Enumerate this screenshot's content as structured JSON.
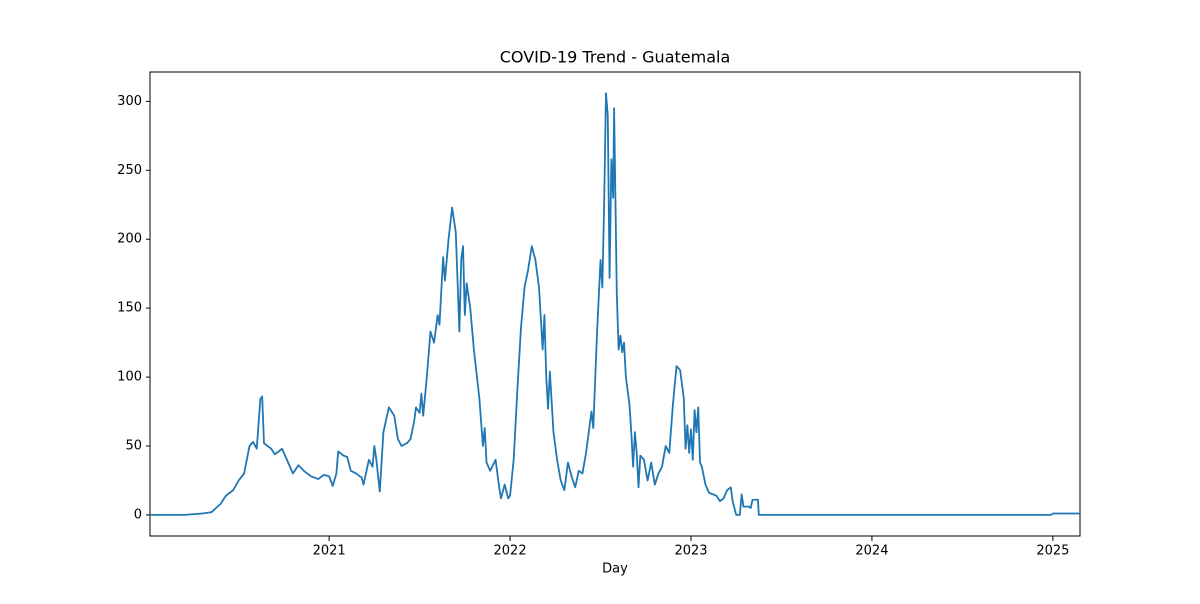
{
  "chart_data": {
    "type": "line",
    "title": "COVID-19 Trend - Guatemala",
    "xlabel": "Day",
    "color": "#1f77b4",
    "x": [
      2020.01,
      2020.2,
      2020.3,
      2020.35,
      2020.4,
      2020.43,
      2020.47,
      2020.5,
      2020.53,
      2020.56,
      2020.58,
      2020.6,
      2020.62,
      2020.63,
      2020.64,
      2020.68,
      2020.7,
      2020.74,
      2020.78,
      2020.8,
      2020.83,
      2020.86,
      2020.9,
      2020.94,
      2020.97,
      2021.0,
      2021.02,
      2021.04,
      2021.05,
      2021.08,
      2021.1,
      2021.12,
      2021.15,
      2021.18,
      2021.19,
      2021.22,
      2021.24,
      2021.25,
      2021.26,
      2021.28,
      2021.3,
      2021.33,
      2021.36,
      2021.38,
      2021.4,
      2021.43,
      2021.45,
      2021.47,
      2021.48,
      2021.5,
      2021.51,
      2021.52,
      2021.54,
      2021.56,
      2021.58,
      2021.6,
      2021.61,
      2021.63,
      2021.64,
      2021.66,
      2021.68,
      2021.7,
      2021.72,
      2021.73,
      2021.74,
      2021.75,
      2021.76,
      2021.78,
      2021.8,
      2021.83,
      2021.85,
      2021.86,
      2021.87,
      2021.89,
      2021.92,
      2021.94,
      2021.95,
      2021.97,
      2021.99,
      2022.0,
      2022.02,
      2022.04,
      2022.06,
      2022.08,
      2022.1,
      2022.12,
      2022.14,
      2022.16,
      2022.18,
      2022.19,
      2022.2,
      2022.21,
      2022.22,
      2022.24,
      2022.26,
      2022.28,
      2022.3,
      2022.32,
      2022.34,
      2022.36,
      2022.38,
      2022.4,
      2022.42,
      2022.44,
      2022.45,
      2022.46,
      2022.48,
      2022.5,
      2022.51,
      2022.52,
      2022.53,
      2022.54,
      2022.55,
      2022.56,
      2022.57,
      2022.575,
      2022.59,
      2022.6,
      2022.61,
      2022.62,
      2022.63,
      2022.64,
      2022.66,
      2022.67,
      2022.68,
      2022.69,
      2022.7,
      2022.71,
      2022.72,
      2022.74,
      2022.76,
      2022.78,
      2022.8,
      2022.82,
      2022.84,
      2022.86,
      2022.88,
      2022.9,
      2022.92,
      2022.94,
      2022.96,
      2022.97,
      2022.98,
      2022.99,
      2023.0,
      2023.01,
      2023.02,
      2023.03,
      2023.04,
      2023.05,
      2023.06,
      2023.08,
      2023.1,
      2023.12,
      2023.14,
      2023.16,
      2023.18,
      2023.2,
      2023.22,
      2023.23,
      2023.25,
      2023.27,
      2023.28,
      2023.29,
      2023.32,
      2023.33,
      2023.34,
      2023.37,
      2023.375,
      2024.0,
      2024.99,
      2025.0,
      2025.1,
      2025.15
    ],
    "values": [
      0,
      0,
      1,
      2,
      8,
      14,
      18,
      25,
      30,
      50,
      53,
      48,
      84,
      86,
      52,
      48,
      44,
      48,
      36,
      30,
      36,
      32,
      28,
      26,
      29,
      28,
      21,
      30,
      46,
      43,
      42,
      32,
      30,
      27,
      22,
      40,
      35,
      50,
      41,
      17,
      60,
      78,
      72,
      55,
      50,
      52,
      55,
      68,
      78,
      74,
      88,
      72,
      100,
      133,
      125,
      145,
      138,
      187,
      170,
      200,
      223,
      205,
      133,
      185,
      195,
      145,
      168,
      150,
      120,
      85,
      50,
      63,
      38,
      32,
      40,
      20,
      12,
      22,
      12,
      14,
      40,
      90,
      135,
      165,
      178,
      195,
      185,
      165,
      120,
      145,
      100,
      77,
      104,
      60,
      40,
      25,
      18,
      38,
      28,
      20,
      32,
      30,
      45,
      65,
      75,
      63,
      130,
      185,
      165,
      225,
      306,
      290,
      172,
      258,
      230,
      295,
      160,
      120,
      130,
      118,
      125,
      100,
      80,
      60,
      35,
      60,
      45,
      20,
      43,
      40,
      25,
      38,
      22,
      30,
      35,
      50,
      45,
      80,
      108,
      105,
      85,
      48,
      65,
      45,
      62,
      40,
      76,
      60,
      78,
      38,
      35,
      22,
      16,
      15,
      14,
      10,
      12,
      18,
      20,
      10,
      0,
      0,
      15,
      6,
      6,
      5,
      11,
      11,
      0,
      0,
      0,
      1,
      1,
      1
    ],
    "xlim": [
      2020.01,
      2025.15
    ],
    "xticks": [
      2021,
      2022,
      2023,
      2024,
      2025
    ],
    "ylim": [
      -15.3,
      321.3
    ],
    "yticks": [
      0,
      50,
      100,
      150,
      200,
      250,
      300
    ]
  }
}
